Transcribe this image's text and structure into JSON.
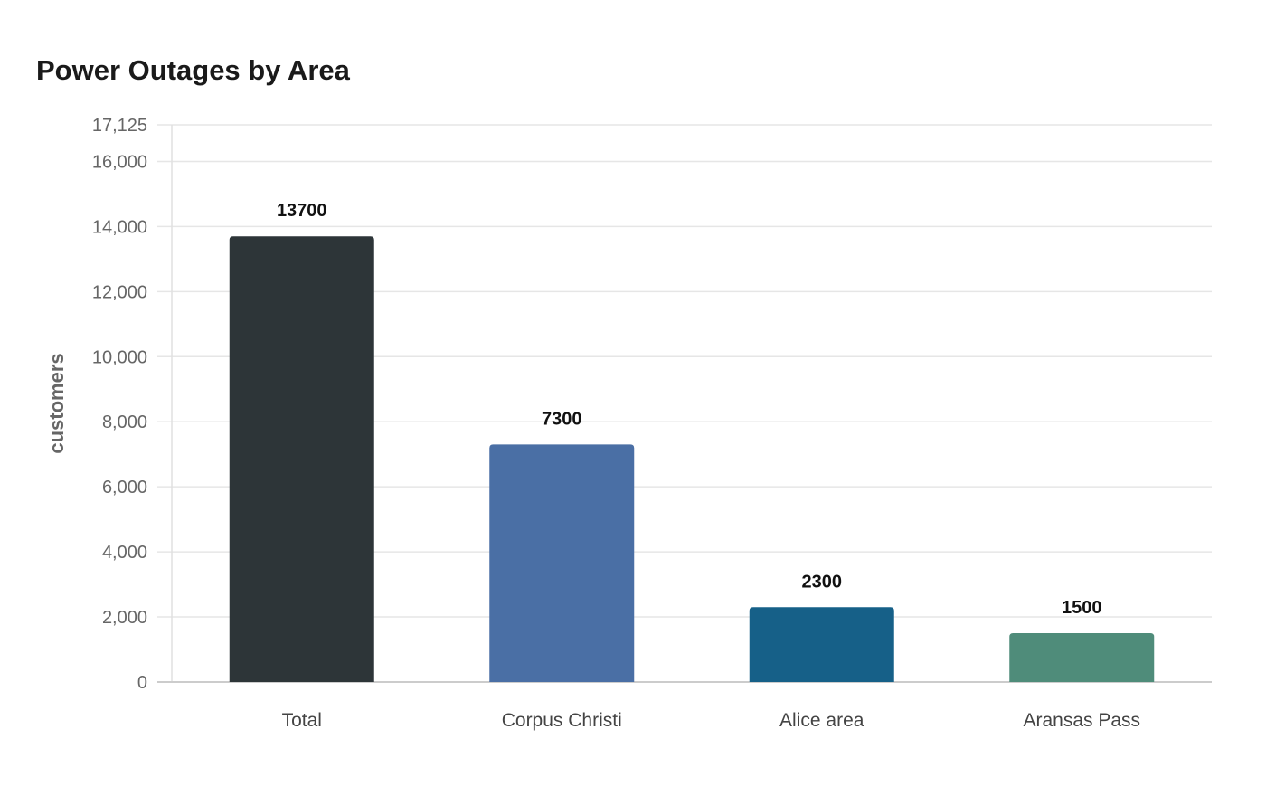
{
  "chart_data": {
    "type": "bar",
    "title": "Power Outages by Area",
    "xlabel": "",
    "ylabel": "customers",
    "categories": [
      "Total",
      "Corpus Christi",
      "Alice area",
      "Aransas Pass"
    ],
    "values": [
      13700,
      7300,
      2300,
      1500
    ],
    "data_labels": [
      "13700",
      "7300",
      "2300",
      "1500"
    ],
    "colors": [
      "#2d3538",
      "#4a6fa5",
      "#166088",
      "#4f8c7a"
    ],
    "ylim": [
      0,
      17125
    ],
    "y_ticks": [
      0,
      2000,
      4000,
      6000,
      8000,
      10000,
      12000,
      14000,
      16000,
      17125
    ],
    "y_tick_labels": [
      "0",
      "2,000",
      "4,000",
      "6,000",
      "8,000",
      "10,000",
      "12,000",
      "14,000",
      "16,000",
      "17,125"
    ],
    "grid": true,
    "legend": "none"
  }
}
